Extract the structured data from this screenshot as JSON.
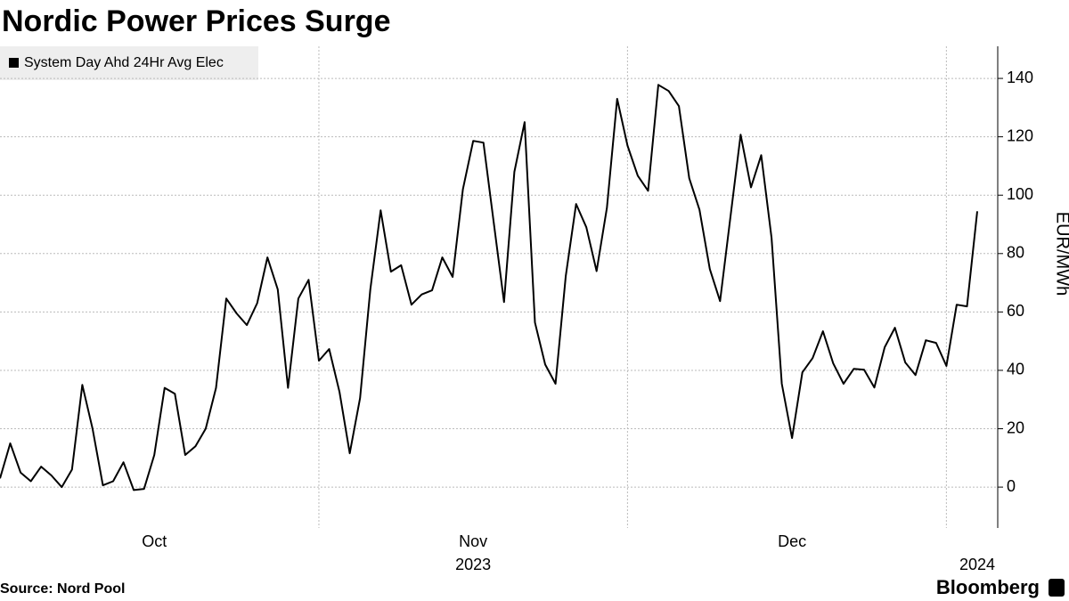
{
  "chart_data": {
    "type": "line",
    "title": "Nordic Power Prices Surge",
    "y_axis_label": "EUR/MWh",
    "source": "Source: Nord Pool",
    "brand": "Bloomberg",
    "categories": [
      null,
      null,
      null,
      null,
      null,
      null,
      null,
      null,
      null,
      null,
      null,
      null,
      null,
      null,
      null,
      "Oct",
      null,
      null,
      null,
      null,
      null,
      null,
      null,
      null,
      null,
      null,
      null,
      null,
      null,
      null,
      null,
      null,
      null,
      null,
      null,
      null,
      null,
      null,
      null,
      null,
      null,
      null,
      null,
      null,
      null,
      null,
      "Nov",
      null,
      null,
      null,
      null,
      null,
      null,
      null,
      null,
      null,
      null,
      null,
      null,
      null,
      null,
      null,
      null,
      null,
      null,
      null,
      null,
      null,
      null,
      null,
      null,
      null,
      null,
      null,
      null,
      null,
      null,
      "Dec",
      null,
      null,
      null,
      null,
      null,
      null,
      null,
      null,
      null,
      null,
      null,
      null,
      null,
      null,
      null,
      null,
      null,
      null
    ],
    "categories_year": [
      null,
      null,
      null,
      null,
      null,
      null,
      null,
      null,
      null,
      null,
      null,
      null,
      null,
      null,
      null,
      null,
      null,
      null,
      null,
      null,
      null,
      null,
      null,
      null,
      null,
      null,
      null,
      null,
      null,
      null,
      null,
      null,
      null,
      null,
      null,
      null,
      null,
      null,
      null,
      null,
      null,
      null,
      null,
      null,
      null,
      null,
      "2023",
      null,
      null,
      null,
      null,
      null,
      null,
      null,
      null,
      null,
      null,
      null,
      null,
      null,
      null,
      null,
      null,
      null,
      null,
      null,
      null,
      null,
      null,
      null,
      null,
      null,
      null,
      null,
      null,
      null,
      null,
      null,
      null,
      null,
      null,
      null,
      null,
      null,
      null,
      null,
      null,
      null,
      null,
      null,
      null,
      null,
      null,
      null,
      null,
      "2024"
    ],
    "series": [
      {
        "name": "System Day Ahd 24Hr Avg Elec",
        "color": "#000000",
        "values": [
          3,
          15,
          5,
          2,
          7,
          4,
          0,
          6,
          35,
          20,
          0.6,
          2,
          8.5,
          -1,
          -0.6,
          11,
          34,
          32,
          11,
          14,
          20,
          34,
          64.6,
          59.5,
          55.5,
          63,
          78.7,
          67.7,
          34,
          64.6,
          71,
          43.3,
          47.3,
          32.6,
          11.6,
          30.5,
          67.7,
          94.8,
          73.8,
          76,
          62.5,
          66,
          67.4,
          78.7,
          72,
          102,
          118.6,
          118,
          90.5,
          63.4,
          108,
          125,
          56.4,
          42,
          35.4,
          72.3,
          97,
          89,
          74,
          95.7,
          133,
          117,
          106.7,
          101.5,
          137.8,
          135.7,
          130.5,
          105.8,
          95,
          74.7,
          63.7,
          92.4,
          120.7,
          102.7,
          113.7,
          85.4,
          35.4,
          16.8,
          39.3,
          44.2,
          53.4,
          42.4,
          35.4,
          40.5,
          40.2,
          34.1,
          47.9,
          54.6,
          42.7,
          38.4,
          50.3,
          49.4,
          41.5,
          62.5,
          61.9,
          94.5
        ]
      }
    ],
    "ylim": [
      -14,
      151
    ],
    "yticks": [
      0,
      20,
      40,
      60,
      80,
      100,
      120,
      140
    ],
    "grid": true,
    "legend": "top-left"
  }
}
